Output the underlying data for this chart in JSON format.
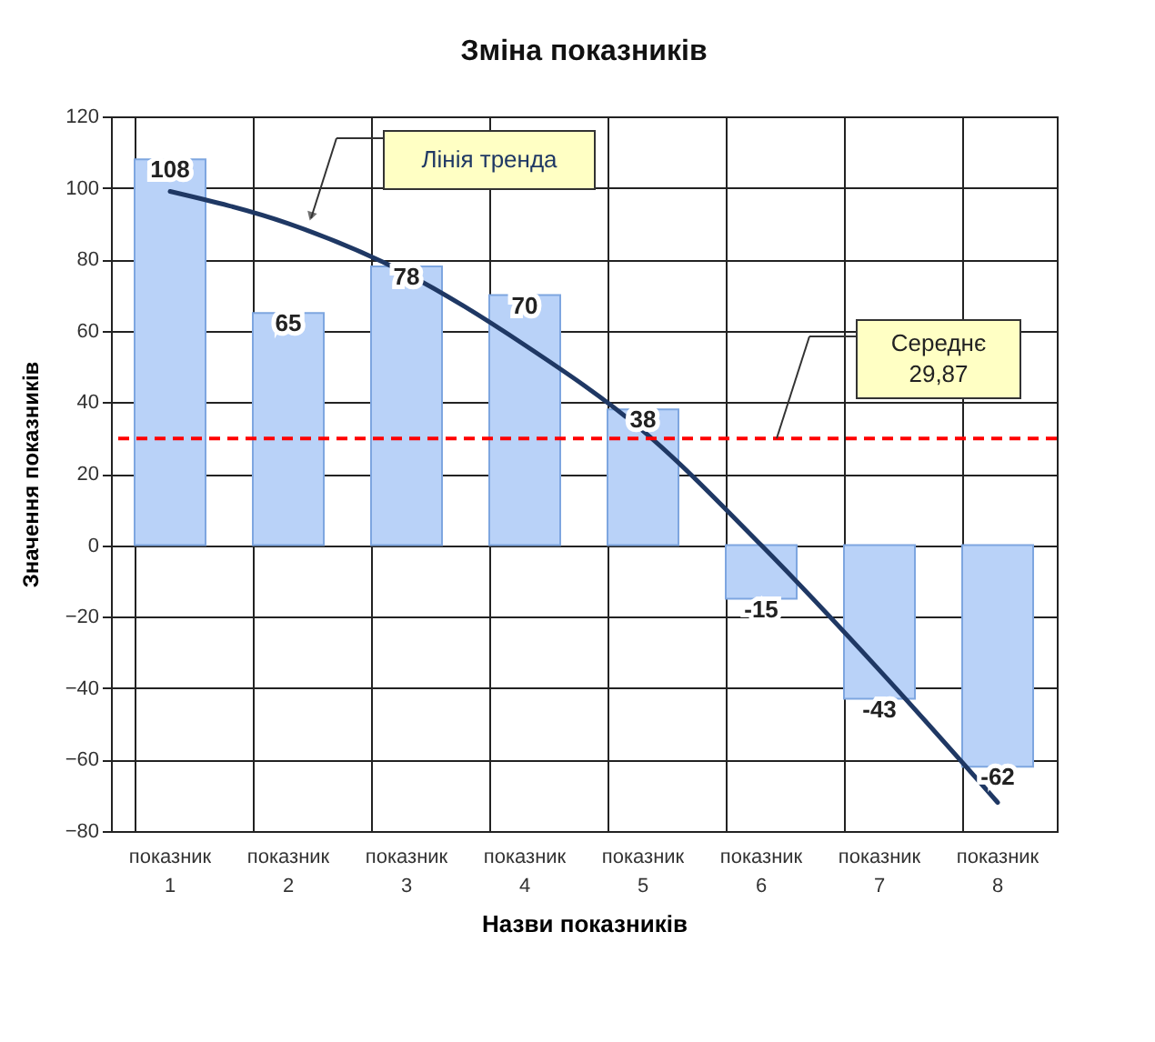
{
  "chart_data": {
    "type": "bar",
    "title": "Зміна показників",
    "xlabel": "Назви показників",
    "ylabel": "Значення показників",
    "categories": [
      "показник 1",
      "показник 2",
      "показник 3",
      "показник 4",
      "показник 5",
      "показник 6",
      "показник 7",
      "показник 8"
    ],
    "series": [
      {
        "color": "#b9d2f8",
        "values": [
          108,
          65,
          78,
          70,
          38,
          -15,
          -43,
          -62
        ],
        "value_labels": [
          "108",
          "65",
          "78",
          "70",
          "38",
          "-15",
          "-43",
          "-62"
        ]
      },
      {
        "type": "line",
        "name": "Лінія тренда",
        "color": "#1f3864",
        "x": [
          "показник 1",
          "показник 2",
          "показник 3",
          "показник 4",
          "показник 5",
          "показник 6",
          "показник 7",
          "показник 8"
        ],
        "values": [
          99,
          90,
          76,
          56,
          32,
          0,
          -35,
          -72
        ]
      }
    ],
    "ref_lines": [
      {
        "axis": "y",
        "value": 29.87,
        "label": "Середнє 29,87",
        "color": "#ff0000",
        "line_style": "dashed"
      }
    ],
    "ylim": [
      -80,
      120
    ],
    "yticks": [
      -80,
      -60,
      -40,
      -20,
      0,
      20,
      40,
      60,
      80,
      100,
      120
    ],
    "grid": true
  }
}
